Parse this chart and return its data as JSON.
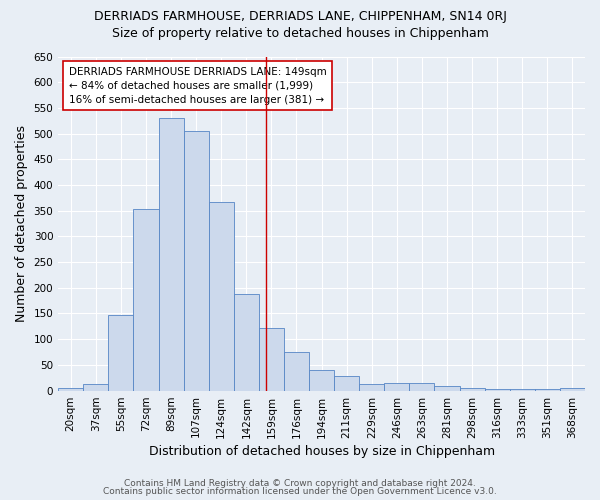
{
  "title": "DERRIADS FARMHOUSE, DERRIADS LANE, CHIPPENHAM, SN14 0RJ",
  "subtitle": "Size of property relative to detached houses in Chippenham",
  "xlabel": "Distribution of detached houses by size in Chippenham",
  "ylabel": "Number of detached properties",
  "categories": [
    "20sqm",
    "37sqm",
    "55sqm",
    "72sqm",
    "89sqm",
    "107sqm",
    "124sqm",
    "142sqm",
    "159sqm",
    "176sqm",
    "194sqm",
    "211sqm",
    "229sqm",
    "246sqm",
    "263sqm",
    "281sqm",
    "298sqm",
    "316sqm",
    "333sqm",
    "351sqm",
    "368sqm"
  ],
  "values": [
    5,
    13,
    148,
    353,
    530,
    505,
    367,
    187,
    122,
    76,
    40,
    29,
    12,
    15,
    15,
    9,
    5,
    3,
    3,
    3,
    5
  ],
  "bar_color": "#ccd9ec",
  "bar_edge_color": "#5585c5",
  "background_color": "#e8eef5",
  "grid_color": "#ffffff",
  "ylim": [
    0,
    650
  ],
  "yticks": [
    0,
    50,
    100,
    150,
    200,
    250,
    300,
    350,
    400,
    450,
    500,
    550,
    600,
    650
  ],
  "vline_x": 7.8,
  "vline_color": "#cc0000",
  "annotation_text": "DERRIADS FARMHOUSE DERRIADS LANE: 149sqm\n← 84% of detached houses are smaller (1,999)\n16% of semi-detached houses are larger (381) →",
  "annotation_box_color": "#ffffff",
  "annotation_box_edge": "#cc0000",
  "footer1": "Contains HM Land Registry data © Crown copyright and database right 2024.",
  "footer2": "Contains public sector information licensed under the Open Government Licence v3.0.",
  "title_fontsize": 9,
  "subtitle_fontsize": 9,
  "axis_label_fontsize": 9,
  "tick_fontsize": 7.5,
  "annotation_fontsize": 7.5,
  "footer_fontsize": 6.5
}
